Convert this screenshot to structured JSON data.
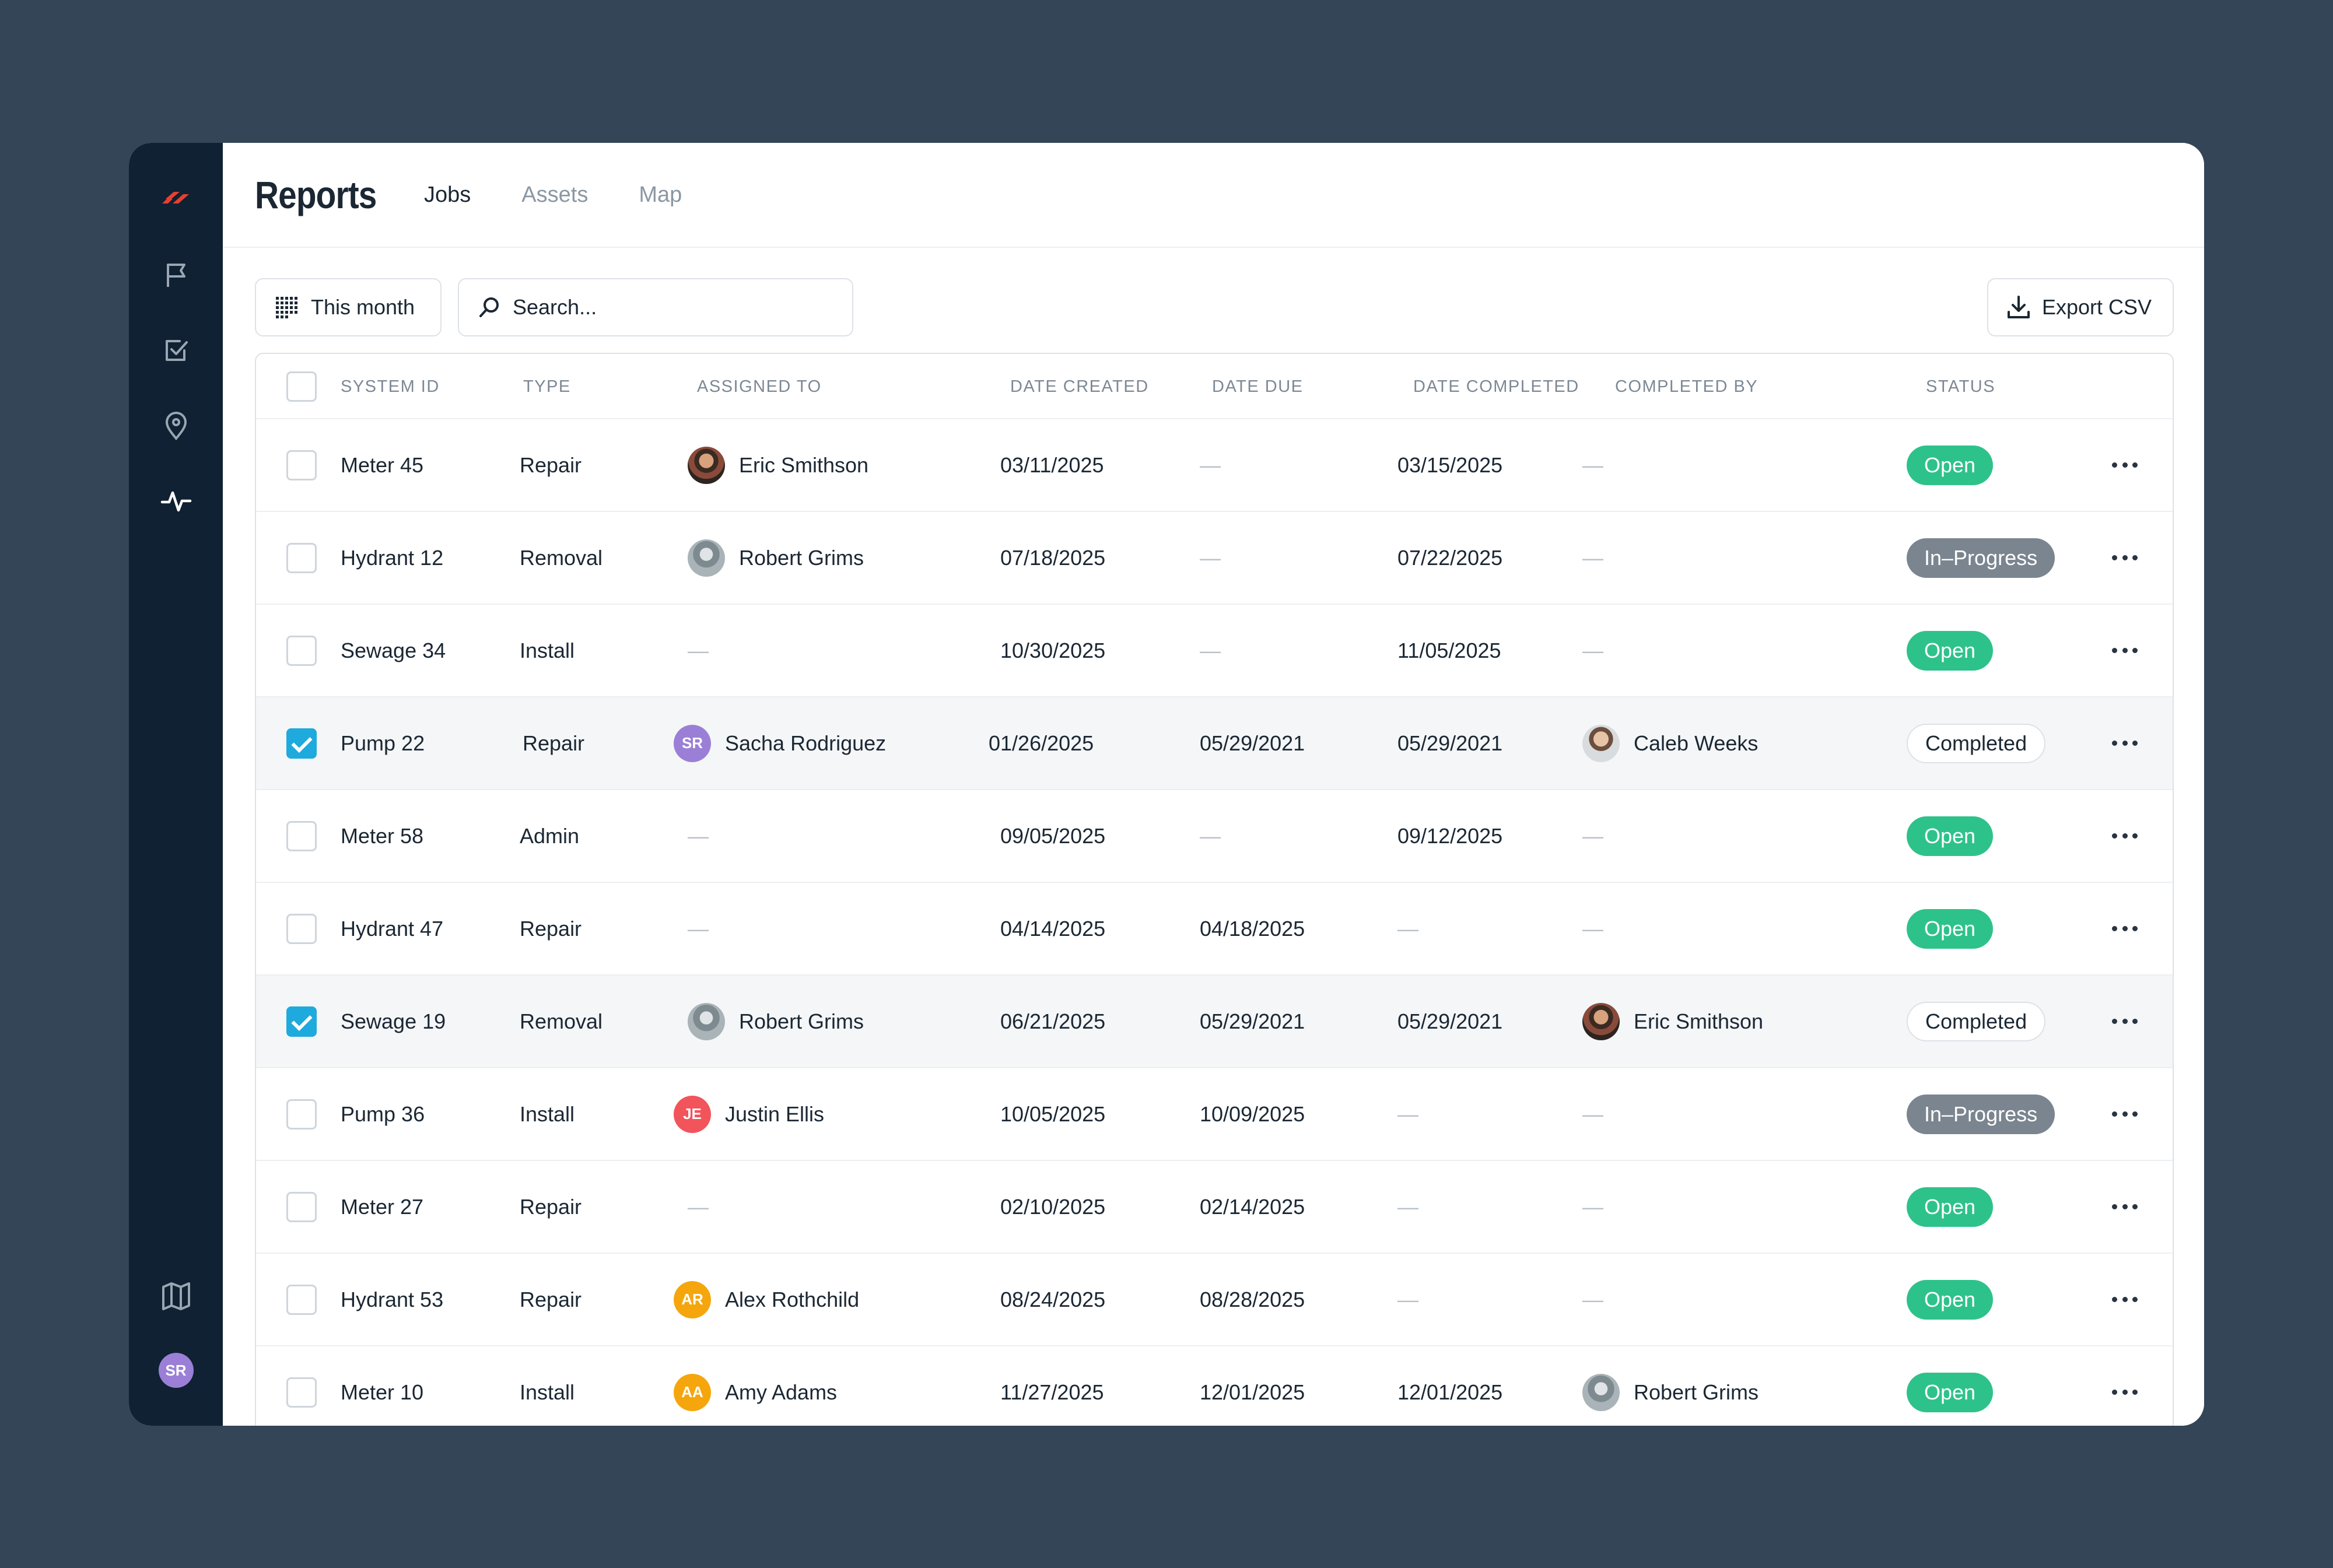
{
  "header": {
    "title": "Reports",
    "tabs": [
      "Jobs",
      "Assets",
      "Map"
    ]
  },
  "toolbar": {
    "date_filter": "This month",
    "search_placeholder": "Search...",
    "export_label": "Export CSV"
  },
  "sidebar": {
    "avatar": "SR",
    "avatar_color": "#9b7fd6",
    "logo_color": "#e8402f"
  },
  "columns": [
    "SYSTEM ID",
    "TYPE",
    "ASSIGNED TO",
    "DATE CREATED",
    "DATE DUE",
    "DATE COMPLETED",
    "COMPLETED BY",
    "STATUS"
  ],
  "rows": [
    {
      "id": "Meter 45",
      "type": "Repair",
      "assigned": "Eric Smithson",
      "assigned_avatar": "photo1",
      "created": "03/11/2025",
      "due": "—",
      "completed": "03/15/2025",
      "completed_by": "—",
      "completed_by_avatar": "",
      "status": "Open",
      "status_kind": "open",
      "selected": false
    },
    {
      "id": "Hydrant 12",
      "type": "Removal",
      "assigned": "Robert Grims",
      "assigned_avatar": "photo2",
      "created": "07/18/2025",
      "due": "—",
      "completed": "07/22/2025",
      "completed_by": "—",
      "completed_by_avatar": "",
      "status": "In–Progress",
      "status_kind": "progress",
      "selected": false
    },
    {
      "id": "Sewage 34",
      "type": "Install",
      "assigned": "—",
      "assigned_avatar": "",
      "created": "10/30/2025",
      "due": "—",
      "completed": "11/05/2025",
      "completed_by": "—",
      "completed_by_avatar": "",
      "status": "Open",
      "status_kind": "open",
      "selected": false
    },
    {
      "id": "Pump 22",
      "type": "Repair",
      "assigned": "Sacha Rodriguez",
      "assigned_avatar": "SR",
      "assigned_avatar_color": "#9b7fd6",
      "created": "01/26/2025",
      "due": "05/29/2021",
      "completed": "05/29/2021",
      "completed_by": "Caleb Weeks",
      "completed_by_avatar": "photo3",
      "status": "Completed",
      "status_kind": "completed",
      "selected": true
    },
    {
      "id": "Meter 58",
      "type": "Admin",
      "assigned": "—",
      "assigned_avatar": "",
      "created": "09/05/2025",
      "due": "—",
      "completed": "09/12/2025",
      "completed_by": "—",
      "completed_by_avatar": "",
      "status": "Open",
      "status_kind": "open",
      "selected": false
    },
    {
      "id": "Hydrant 47",
      "type": "Repair",
      "assigned": "—",
      "assigned_avatar": "",
      "created": "04/14/2025",
      "due": "04/18/2025",
      "completed": "—",
      "completed_by": "—",
      "completed_by_avatar": "",
      "status": "Open",
      "status_kind": "open",
      "selected": false
    },
    {
      "id": "Sewage 19",
      "type": "Removal",
      "assigned": "Robert Grims",
      "assigned_avatar": "photo2",
      "created": "06/21/2025",
      "due": "05/29/2021",
      "completed": "05/29/2021",
      "completed_by": "Eric Smithson",
      "completed_by_avatar": "photo1",
      "status": "Completed",
      "status_kind": "completed",
      "selected": true
    },
    {
      "id": "Pump 36",
      "type": "Install",
      "assigned": "Justin Ellis",
      "assigned_avatar": "JE",
      "assigned_avatar_color": "#f2545b",
      "created": "10/05/2025",
      "due": "10/09/2025",
      "completed": "—",
      "completed_by": "—",
      "completed_by_avatar": "",
      "status": "In–Progress",
      "status_kind": "progress",
      "selected": false
    },
    {
      "id": "Meter 27",
      "type": "Repair",
      "assigned": "—",
      "assigned_avatar": "",
      "created": "02/10/2025",
      "due": "02/14/2025",
      "completed": "—",
      "completed_by": "—",
      "completed_by_avatar": "",
      "status": "Open",
      "status_kind": "open",
      "selected": false
    },
    {
      "id": "Hydrant 53",
      "type": "Repair",
      "assigned": "Alex Rothchild",
      "assigned_avatar": "AR",
      "assigned_avatar_color": "#f5a60d",
      "created": "08/24/2025",
      "due": "08/28/2025",
      "completed": "—",
      "completed_by": "—",
      "completed_by_avatar": "",
      "status": "Open",
      "status_kind": "open",
      "selected": false
    },
    {
      "id": "Meter 10",
      "type": "Install",
      "assigned": "Amy Adams",
      "assigned_avatar": "AA",
      "assigned_avatar_color": "#f5a60d",
      "created": "11/27/2025",
      "due": "12/01/2025",
      "completed": "12/01/2025",
      "completed_by": "Robert Grims",
      "completed_by_avatar": "photo2",
      "status": "Open",
      "status_kind": "open",
      "selected": false
    }
  ]
}
